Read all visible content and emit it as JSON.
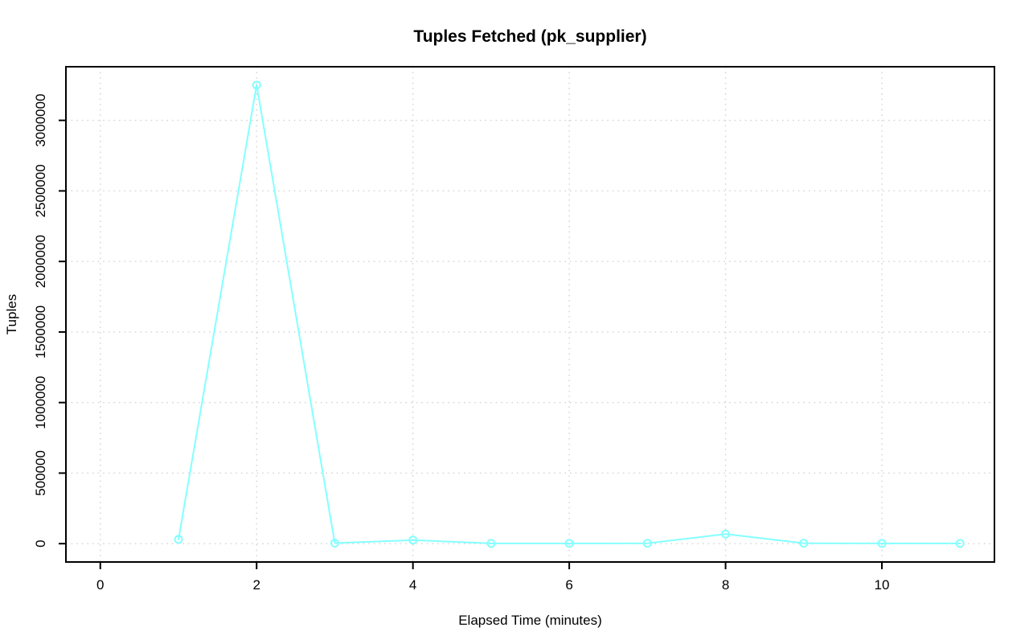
{
  "chart": {
    "title": "Tuples Fetched (pk_supplier)",
    "xlabel": "Elapsed Time (minutes)",
    "ylabel": "Tuples"
  },
  "chart_data": {
    "type": "line",
    "title": "Tuples Fetched (pk_supplier)",
    "xlabel": "Elapsed Time (minutes)",
    "ylabel": "Tuples",
    "x": [
      1,
      2,
      3,
      4,
      5,
      6,
      7,
      8,
      9,
      10,
      11
    ],
    "values": [
      30000,
      3250000,
      4000,
      25000,
      2000,
      1500,
      2500,
      68000,
      3000,
      1500,
      1500
    ],
    "xticks": [
      0,
      2,
      4,
      6,
      8,
      10
    ],
    "xtick_labels": [
      "0",
      "2",
      "4",
      "6",
      "8",
      "10"
    ],
    "yticks": [
      0,
      500000,
      1000000,
      1500000,
      2000000,
      2500000,
      3000000
    ],
    "ytick_labels": [
      "0",
      "500000",
      "1000000",
      "1500000",
      "2000000",
      "2500000",
      "3000000"
    ],
    "xlim": [
      -0.44,
      11.44
    ],
    "ylim": [
      -130000,
      3380000
    ],
    "grid": true,
    "grid_style": "dotted",
    "legend": "none",
    "marker": "open-circle",
    "line_color": "#85FFFF",
    "grid_color": "#D3D3D3",
    "axis_color": "#000000",
    "background_color": "#FFFFFF"
  }
}
